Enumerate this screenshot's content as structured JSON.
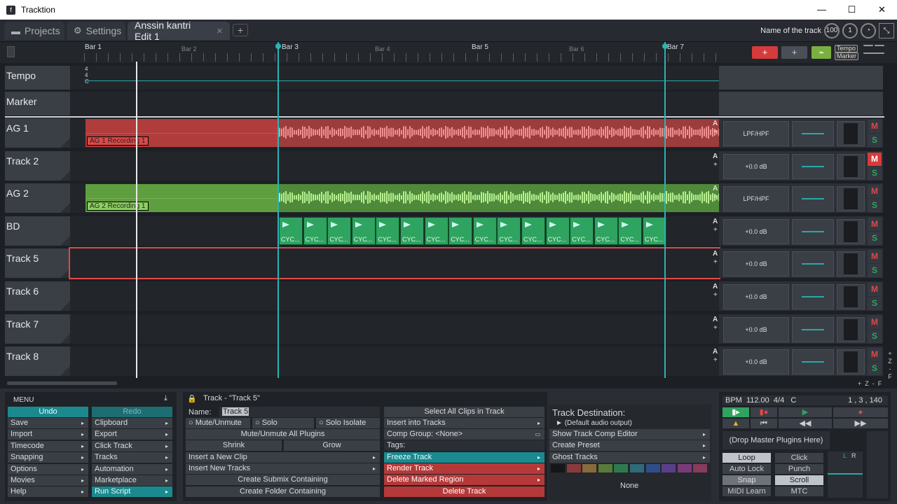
{
  "window": {
    "title": "Tracktion",
    "min": "—",
    "max": "☐",
    "close": "✕"
  },
  "tabs": [
    {
      "label": "Projects",
      "icon": "folder-icon"
    },
    {
      "label": "Settings",
      "icon": "gear-icon"
    },
    {
      "label": "Anssin kantri Edit 1",
      "close": "✕"
    }
  ],
  "add_tab": "+",
  "toolbar_right": {
    "name_label": "Name of the track",
    "counter1": "100",
    "counter2": "1"
  },
  "ruler": {
    "bars": [
      "Bar 1",
      "Bar 2",
      "Bar 3",
      "Bar 4",
      "Bar 5",
      "Bar 6",
      "Bar 7"
    ],
    "add_red": "+",
    "add_grey": "+",
    "tempo_btn": "Tempo",
    "marker_btn": "Marker"
  },
  "tempo_track": {
    "name": "Tempo",
    "sig_top": "4",
    "sig_bottom": "4",
    "key": "C"
  },
  "marker_track": {
    "name": "Marker"
  },
  "tracks": [
    {
      "name": "AG 1",
      "plugin": "LPF/HPF",
      "clip_label": "AG 1 Recording 1",
      "mute": "M",
      "solo": "S",
      "auto": "A",
      "plus": "+"
    },
    {
      "name": "Track 2",
      "plugin": "+0.0 dB",
      "mute": "M",
      "solo": "S",
      "auto": "A",
      "plus": "+"
    },
    {
      "name": "AG 2",
      "plugin": "LPF/HPF",
      "clip_label": "AG 2 Recording 1",
      "mute": "M",
      "solo": "S",
      "auto": "A",
      "plus": "+"
    },
    {
      "name": "BD",
      "plugin": "+0.0 dB",
      "cycle_label": "CYC...",
      "mute": "M",
      "solo": "S",
      "auto": "A",
      "plus": "+"
    },
    {
      "name": "Track 5",
      "plugin": "+0.0 dB",
      "mute": "M",
      "solo": "S",
      "auto": "A",
      "plus": "+"
    },
    {
      "name": "Track 6",
      "plugin": "+0.0 dB",
      "mute": "M",
      "solo": "S",
      "auto": "A",
      "plus": "+"
    },
    {
      "name": "Track 7",
      "plugin": "+0.0 dB",
      "mute": "M",
      "solo": "S",
      "auto": "A",
      "plus": "+"
    },
    {
      "name": "Track 8",
      "plugin": "+0.0 dB",
      "mute": "M",
      "solo": "S",
      "auto": "A",
      "plus": "+"
    }
  ],
  "zoom": {
    "plus": "+",
    "z": "Z",
    "minus": "-",
    "f": "F"
  },
  "menu": {
    "title": "MENU",
    "undo": "Undo",
    "redo": "Redo",
    "left": [
      "Save",
      "Import",
      "Timecode",
      "Snapping",
      "Options",
      "Movies",
      "Help"
    ],
    "right": [
      "Clipboard",
      "Export",
      "Click Track",
      "Tracks",
      "Automation",
      "Marketplace",
      "Run Script"
    ]
  },
  "track_panel": {
    "title": "Track - \"Track 5\"",
    "name_label": "Name:",
    "name_value": "Track 5",
    "mute_unmute": "Mute/Unmute",
    "solo": "Solo",
    "solo_isolate": "Solo Isolate",
    "mute_all_plugins": "Mute/Unmute All Plugins",
    "shrink": "Shrink",
    "grow": "Grow",
    "insert_clip": "Insert a New Clip",
    "insert_tracks": "Insert New Tracks",
    "create_submix": "Create Submix Containing",
    "create_folder": "Create Folder Containing"
  },
  "track_panel2": {
    "select_all": "Select All Clips in Track",
    "insert_into": "Insert into Tracks",
    "comp_group": "Comp Group:  <None>",
    "tags": "Tags:",
    "freeze": "Freeze Track",
    "render": "Render Track",
    "delete_region": "Delete Marked Region",
    "delete_track": "Delete Track"
  },
  "destination": {
    "title": "Track Destination:",
    "value": "(Default audio output)",
    "show_comp": "Show Track Comp Editor",
    "create_preset": "Create Preset",
    "ghost": "Ghost Tracks",
    "none": "None",
    "swatches": [
      "#151618",
      "#8a3a3a",
      "#8a6a3a",
      "#5a7a3a",
      "#2e7a4e",
      "#2e6a7a",
      "#2e4e8a",
      "#5a3e8a",
      "#7a3a7a",
      "#8a3a5a"
    ]
  },
  "transport": {
    "bpm_label": "BPM",
    "bpm": "112.00",
    "sig": "4/4",
    "key": "C",
    "position": "1 ,  3 , 140",
    "drop": "(Drop Master Plugins Here)",
    "loop": "Loop",
    "click": "Click",
    "auto_lock": "Auto Lock",
    "punch": "Punch",
    "snap": "Snap",
    "scroll": "Scroll",
    "midi_learn": "MIDI Learn",
    "mtc": "MTC",
    "l": "L",
    "r": "R"
  }
}
